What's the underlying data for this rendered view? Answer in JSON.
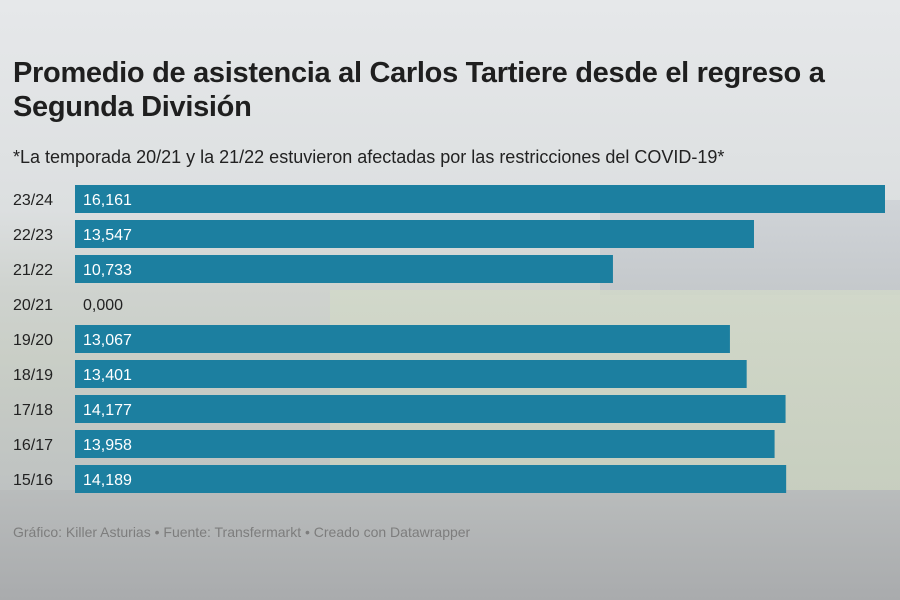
{
  "title": "Promedio de asistencia al Carlos Tartiere desde el regreso a Segunda División",
  "subtitle": "*La temporada 20/21 y la 21/22 estuvieron afectadas por las restricciones del COVID-19*",
  "footer": "Gráfico: Killer Asturias • Fuente: Transfermarkt • Creado con Datawrapper",
  "colors": {
    "bar": "#1c7fa0",
    "label_in_bar": "#ffffff",
    "label_outside": "#222222"
  },
  "chart_data": {
    "type": "bar",
    "orientation": "horizontal",
    "categories": [
      "23/24",
      "22/23",
      "21/22",
      "20/21",
      "19/20",
      "18/19",
      "17/18",
      "16/17",
      "15/16"
    ],
    "values": [
      16.161,
      13.547,
      10.733,
      0.0,
      13.067,
      13.401,
      14.177,
      13.958,
      14.189
    ],
    "value_labels": [
      "16,161",
      "13,547",
      "10,733",
      "0,000",
      "13,067",
      "13,401",
      "14,177",
      "13,958",
      "14,189"
    ],
    "xlim": [
      0,
      16.161
    ],
    "grid": false
  }
}
